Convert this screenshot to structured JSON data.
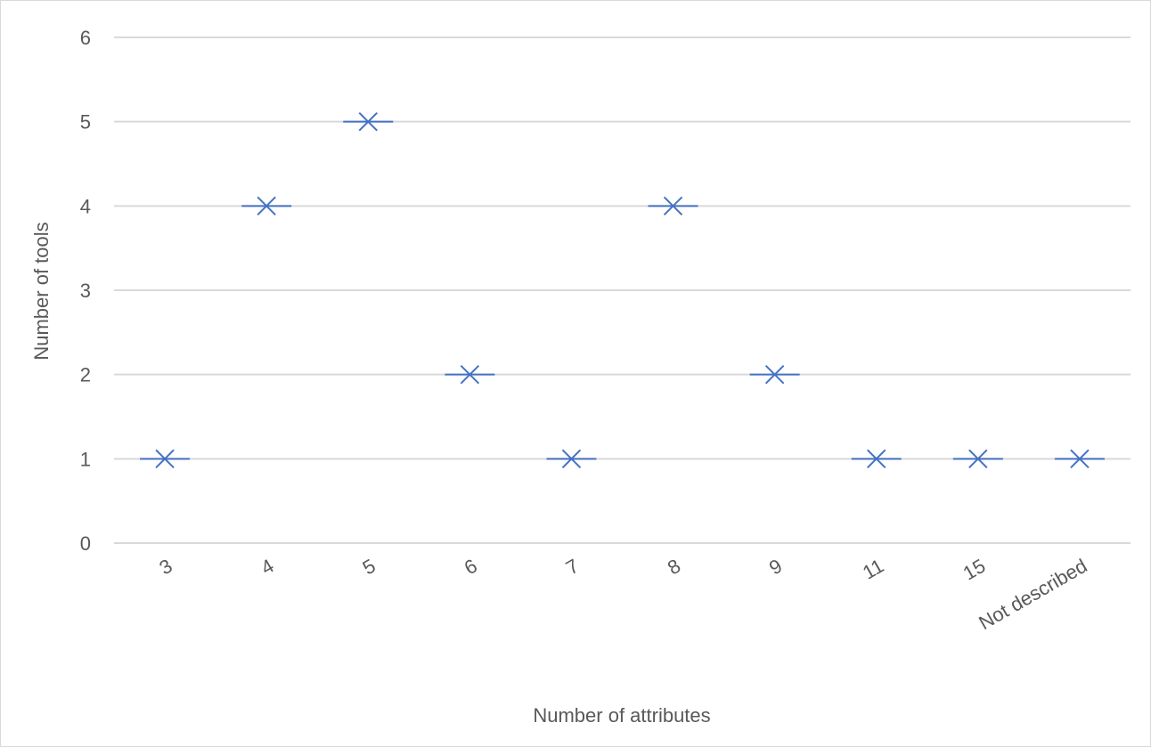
{
  "chart_data": {
    "type": "scatter",
    "title": "",
    "xlabel": "Number of attributes",
    "ylabel": "Number of tools",
    "categories": [
      "3",
      "4",
      "5",
      "6",
      "7",
      "8",
      "9",
      "11",
      "15",
      "Not described"
    ],
    "series": [
      {
        "values": [
          1,
          4,
          5,
          2,
          1,
          4,
          2,
          1,
          1,
          1
        ]
      }
    ],
    "ylim": [
      0,
      6
    ],
    "yticks": [
      "0",
      "1",
      "2",
      "3",
      "4",
      "5",
      "6"
    ],
    "grid": true,
    "legend": "none",
    "marker": "x-with-dash",
    "colors": {
      "marker": "#4472c4",
      "grid": "#d9d9d9",
      "text": "#595959"
    }
  }
}
